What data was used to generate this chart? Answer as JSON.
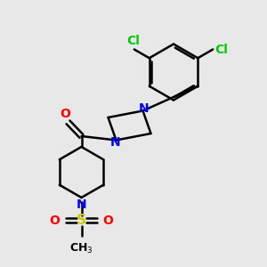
{
  "bg_color": "#e8e8e8",
  "bond_color": "#000000",
  "nitrogen_color": "#0000ff",
  "oxygen_color": "#ff0000",
  "sulfur_color": "#cccc00",
  "chlorine_color": "#00cc00",
  "line_width": 1.8,
  "font_size": 10,
  "fig_size": [
    3.0,
    3.0
  ],
  "dpi": 100,
  "xlim": [
    0,
    10
  ],
  "ylim": [
    0,
    10
  ]
}
